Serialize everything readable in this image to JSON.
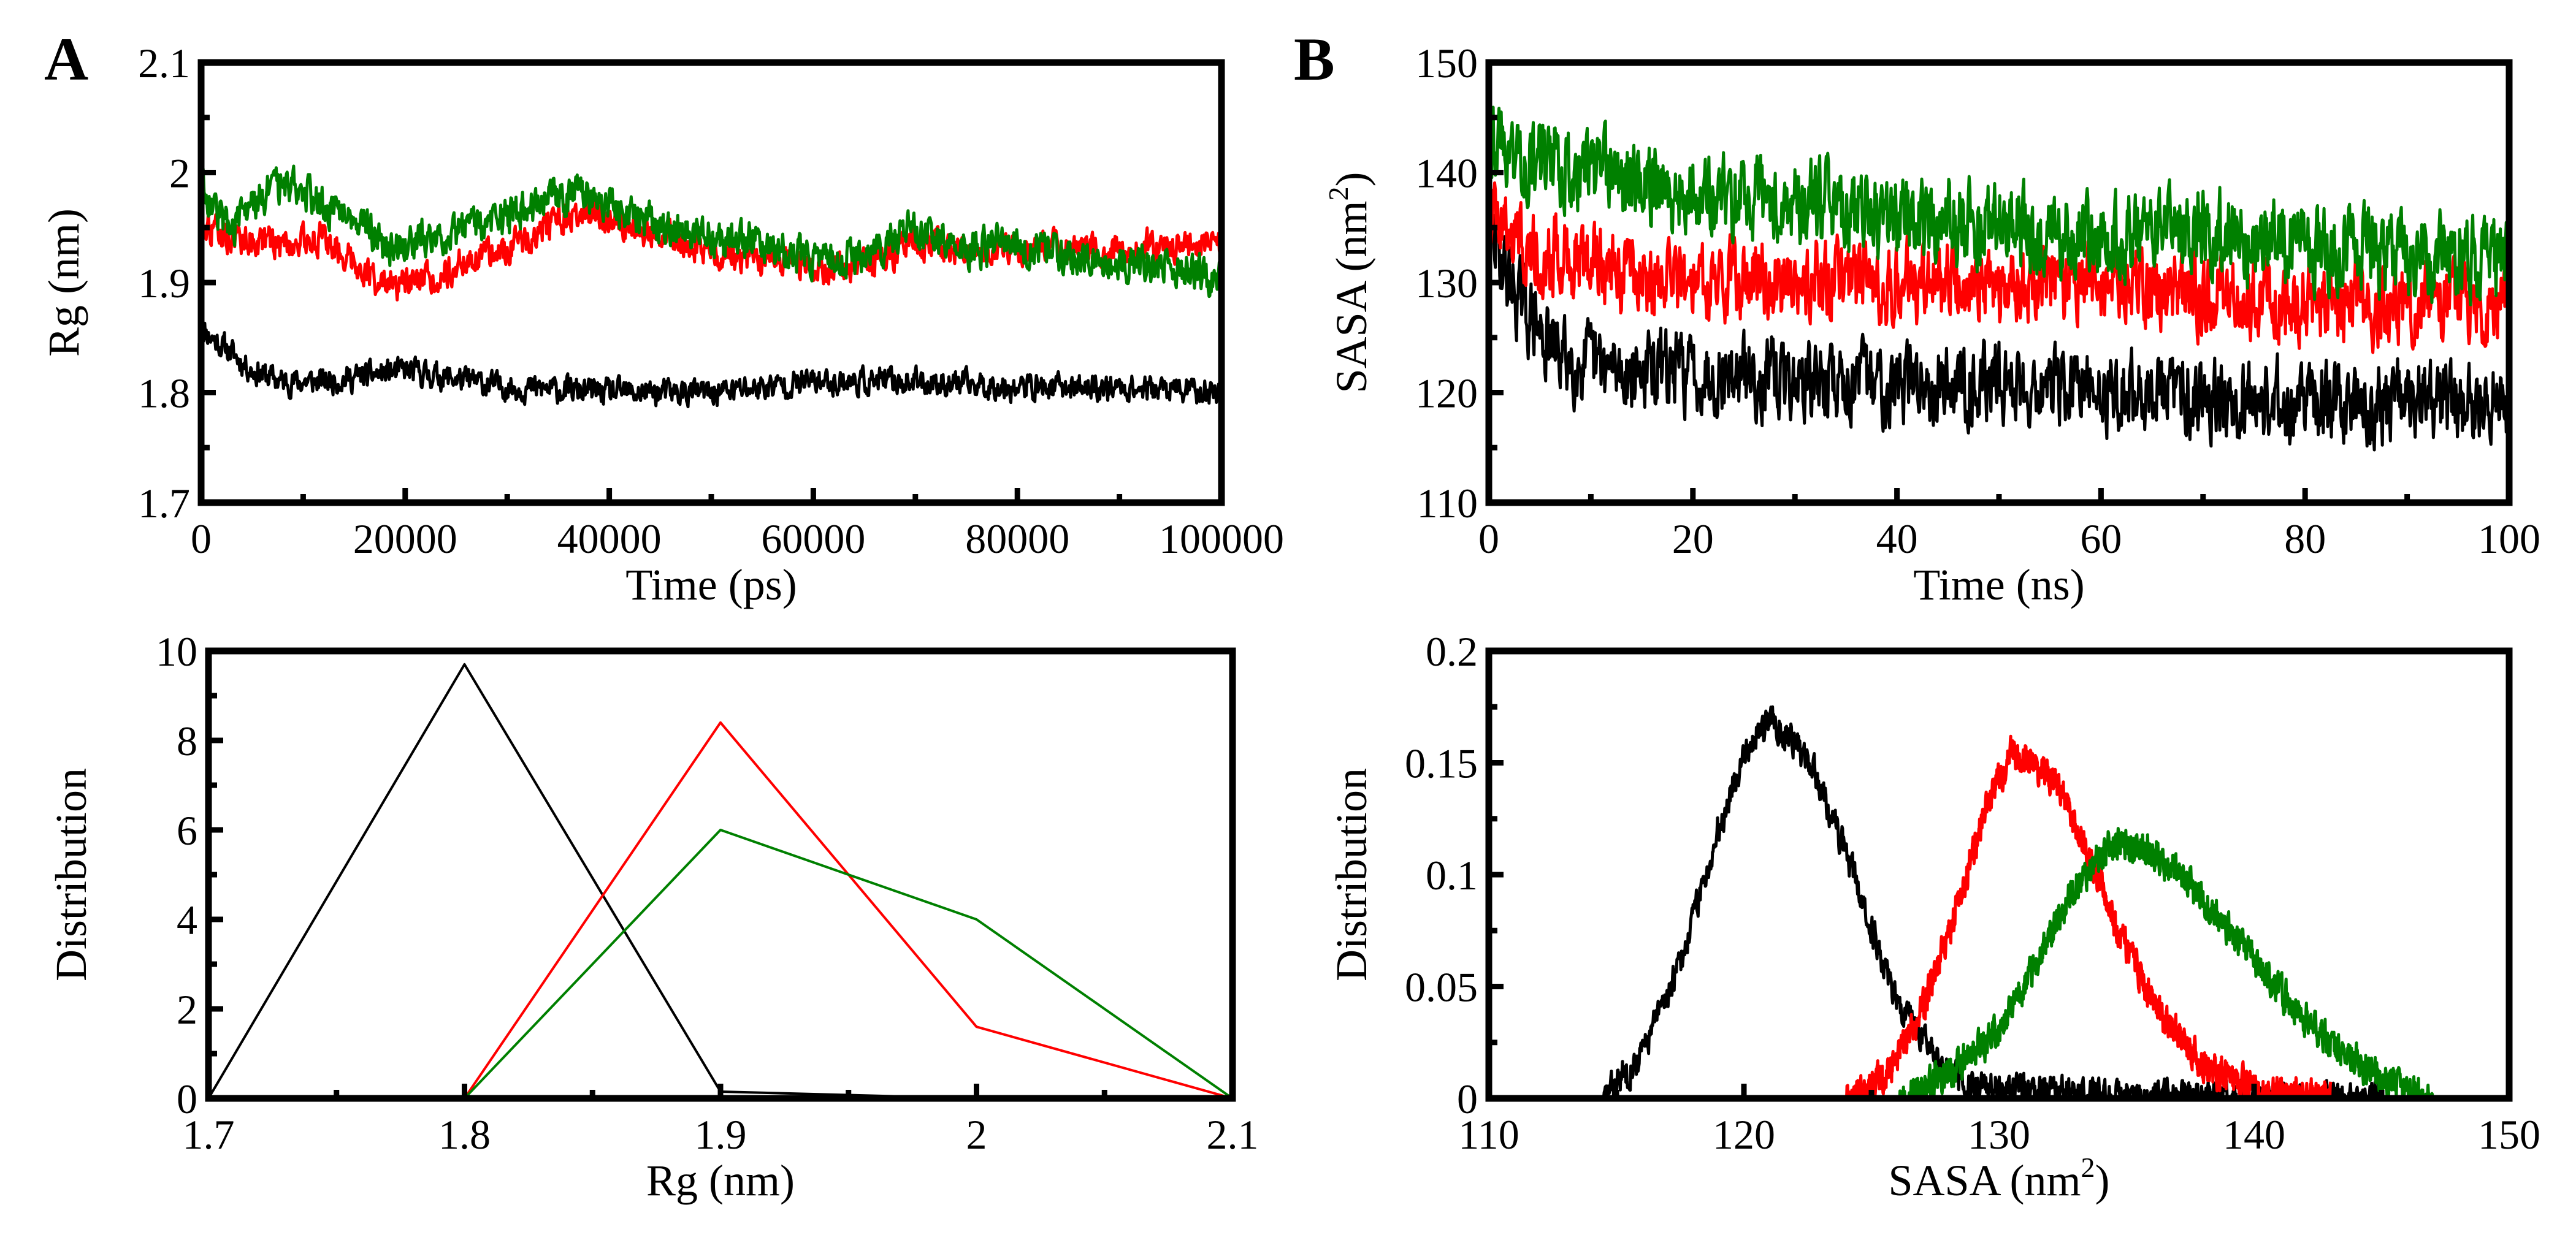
{
  "figure": {
    "panel_labels": [
      "A",
      "B"
    ]
  },
  "chart_data": [
    {
      "id": "rg_time",
      "type": "line",
      "panel": "A",
      "title": "",
      "xlabel": "Time (ps)",
      "ylabel": "Rg (nm)",
      "xlim": [
        0,
        100000
      ],
      "ylim": [
        1.7,
        2.1
      ],
      "x_ticks": [
        0,
        20000,
        40000,
        60000,
        80000,
        100000
      ],
      "y_ticks": [
        1.7,
        1.8,
        1.9,
        2,
        2.1
      ],
      "x_tick_labels": [
        "0",
        "20000",
        "40000",
        "60000",
        "80000",
        "100000"
      ],
      "y_tick_labels": [
        "1.7",
        "1.8",
        "1.9",
        "2",
        "2.1"
      ],
      "series": [
        {
          "name": "black",
          "color": "#000000",
          "noise": 0.01,
          "x": [
            0,
            1000,
            2500,
            5000,
            8000,
            12000,
            20000,
            30000,
            40000,
            50000,
            60000,
            70000,
            80000,
            90000,
            100000
          ],
          "values": [
            1.86,
            1.85,
            1.84,
            1.82,
            1.81,
            1.81,
            1.82,
            1.805,
            1.8,
            1.8,
            1.81,
            1.81,
            1.805,
            1.805,
            1.8
          ]
        },
        {
          "name": "red",
          "color": "#ff0000",
          "noise": 0.012,
          "x": [
            0,
            1000,
            3000,
            8000,
            12000,
            15000,
            18000,
            22000,
            26000,
            30000,
            34000,
            38000,
            42000,
            46000,
            50000,
            54000,
            58000,
            62000,
            66000,
            70000,
            75000,
            80000,
            85000,
            90000,
            95000,
            100000
          ],
          "values": [
            1.96,
            1.95,
            1.94,
            1.935,
            1.94,
            1.92,
            1.895,
            1.9,
            1.92,
            1.93,
            1.95,
            1.965,
            1.95,
            1.94,
            1.93,
            1.915,
            1.92,
            1.91,
            1.92,
            1.935,
            1.93,
            1.93,
            1.935,
            1.93,
            1.935,
            1.935
          ]
        },
        {
          "name": "green",
          "color": "#008000",
          "noise": 0.014,
          "x": [
            0,
            1000,
            3000,
            6000,
            9000,
            12000,
            15000,
            18000,
            22000,
            26000,
            30000,
            34000,
            38000,
            42000,
            46000,
            50000,
            54000,
            58000,
            62000,
            66000,
            70000,
            75000,
            80000,
            85000,
            90000,
            95000,
            100000
          ],
          "values": [
            2.0,
            1.97,
            1.95,
            1.98,
            1.99,
            1.97,
            1.965,
            1.93,
            1.94,
            1.95,
            1.96,
            1.975,
            1.98,
            1.96,
            1.95,
            1.94,
            1.94,
            1.925,
            1.92,
            1.93,
            1.95,
            1.93,
            1.935,
            1.925,
            1.92,
            1.915,
            1.9
          ]
        }
      ]
    },
    {
      "id": "sasa_time",
      "type": "line",
      "panel": "B",
      "title": "",
      "xlabel": "Time (ns)",
      "ylabel": "SASA (nm",
      "ylabel_sup": "2",
      "ylabel_end": ")",
      "xlim": [
        0,
        100
      ],
      "ylim": [
        110,
        150
      ],
      "x_ticks": [
        0,
        20,
        40,
        60,
        80,
        100
      ],
      "y_ticks": [
        110,
        120,
        130,
        140,
        150
      ],
      "x_tick_labels": [
        "0",
        "20",
        "40",
        "60",
        "80",
        "100"
      ],
      "y_tick_labels": [
        "110",
        "120",
        "130",
        "140",
        "150"
      ],
      "series": [
        {
          "name": "black",
          "color": "#000000",
          "noise": 3.0,
          "x": [
            0,
            1,
            2,
            4,
            6,
            8,
            12,
            20,
            30,
            40,
            50,
            60,
            70,
            80,
            90,
            100
          ],
          "values": [
            135,
            133,
            130,
            127,
            124,
            123,
            122,
            122,
            121,
            121,
            121,
            120,
            120,
            119,
            119,
            119
          ]
        },
        {
          "name": "red",
          "color": "#ff0000",
          "noise": 3.0,
          "x": [
            0,
            2,
            5,
            10,
            15,
            20,
            30,
            40,
            50,
            60,
            70,
            80,
            90,
            100
          ],
          "values": [
            137,
            135,
            133,
            132,
            130,
            130,
            130,
            130,
            130,
            130,
            129,
            128,
            128,
            128
          ]
        },
        {
          "name": "green",
          "color": "#008000",
          "noise": 3.2,
          "x": [
            0,
            2,
            5,
            10,
            15,
            20,
            30,
            40,
            50,
            60,
            70,
            80,
            90,
            100
          ],
          "values": [
            144,
            142,
            141,
            140,
            139,
            138,
            137,
            136,
            135,
            134,
            135,
            133,
            133,
            132
          ]
        }
      ]
    },
    {
      "id": "rg_dist",
      "type": "line",
      "panel": "A",
      "title": "",
      "xlabel": "Rg (nm)",
      "ylabel": "Distribution",
      "xlim": [
        1.7,
        2.1
      ],
      "ylim": [
        0,
        10
      ],
      "x_ticks": [
        1.7,
        1.8,
        1.9,
        2,
        2.1
      ],
      "y_ticks": [
        0,
        2,
        4,
        6,
        8,
        10
      ],
      "x_tick_labels": [
        "1.7",
        "1.8",
        "1.9",
        "2",
        "2.1"
      ],
      "y_tick_labels": [
        "0",
        "2",
        "4",
        "6",
        "8",
        "10"
      ],
      "series": [
        {
          "name": "black",
          "color": "#000000",
          "x": [
            1.7,
            1.8,
            1.9,
            2.0,
            2.1
          ],
          "values": [
            0,
            9.7,
            0.15,
            0,
            0
          ]
        },
        {
          "name": "red",
          "color": "#ff0000",
          "x": [
            1.8,
            1.9,
            2.0,
            2.1
          ],
          "values": [
            0,
            8.4,
            1.6,
            0
          ]
        },
        {
          "name": "green",
          "color": "#008000",
          "x": [
            1.8,
            1.9,
            2.0,
            2.1
          ],
          "values": [
            0,
            6.0,
            4.0,
            0
          ]
        }
      ]
    },
    {
      "id": "sasa_dist",
      "type": "line",
      "panel": "B",
      "title": "",
      "xlabel": "SASA (nm",
      "xlabel_sup": "2",
      "xlabel_end": ")",
      "ylabel": "Distribution",
      "xlim": [
        110,
        150
      ],
      "ylim": [
        0,
        0.2
      ],
      "x_ticks": [
        110,
        120,
        130,
        140,
        150
      ],
      "y_ticks": [
        0,
        0.05,
        0.1,
        0.15,
        0.2
      ],
      "x_tick_labels": [
        "110",
        "120",
        "130",
        "140",
        "150"
      ],
      "y_tick_labels": [
        "0",
        "0.05",
        "0.1",
        "0.15",
        "0.2"
      ],
      "series": [
        {
          "name": "black",
          "color": "#000000",
          "noise": 0.006,
          "x": [
            114.5,
            116,
            117.5,
            119,
            120,
            121,
            122,
            123,
            124,
            125,
            126,
            127,
            128,
            129,
            131,
            135,
            140,
            145
          ],
          "values": [
            0.0,
            0.02,
            0.06,
            0.12,
            0.155,
            0.17,
            0.16,
            0.14,
            0.11,
            0.075,
            0.045,
            0.025,
            0.012,
            0.006,
            0.003,
            0.001,
            0.0,
            0.0
          ]
        },
        {
          "name": "red",
          "color": "#ff0000",
          "noise": 0.006,
          "x": [
            124,
            125.5,
            127,
            128.5,
            129.5,
            130.5,
            131.5,
            132.5,
            133.5,
            134.5,
            135.5,
            136.5,
            138,
            140,
            142,
            143
          ],
          "values": [
            0.0,
            0.01,
            0.04,
            0.09,
            0.13,
            0.155,
            0.15,
            0.135,
            0.11,
            0.08,
            0.055,
            0.035,
            0.015,
            0.004,
            0.001,
            0.0
          ]
        },
        {
          "name": "green",
          "color": "#008000",
          "noise": 0.006,
          "x": [
            126,
            128,
            130,
            131.5,
            133,
            134.5,
            136,
            137.5,
            139,
            140.5,
            142,
            143.5,
            145,
            146.5,
            147
          ],
          "values": [
            0.0,
            0.01,
            0.03,
            0.06,
            0.095,
            0.115,
            0.11,
            0.095,
            0.075,
            0.055,
            0.035,
            0.02,
            0.008,
            0.002,
            0.0
          ]
        }
      ]
    }
  ]
}
